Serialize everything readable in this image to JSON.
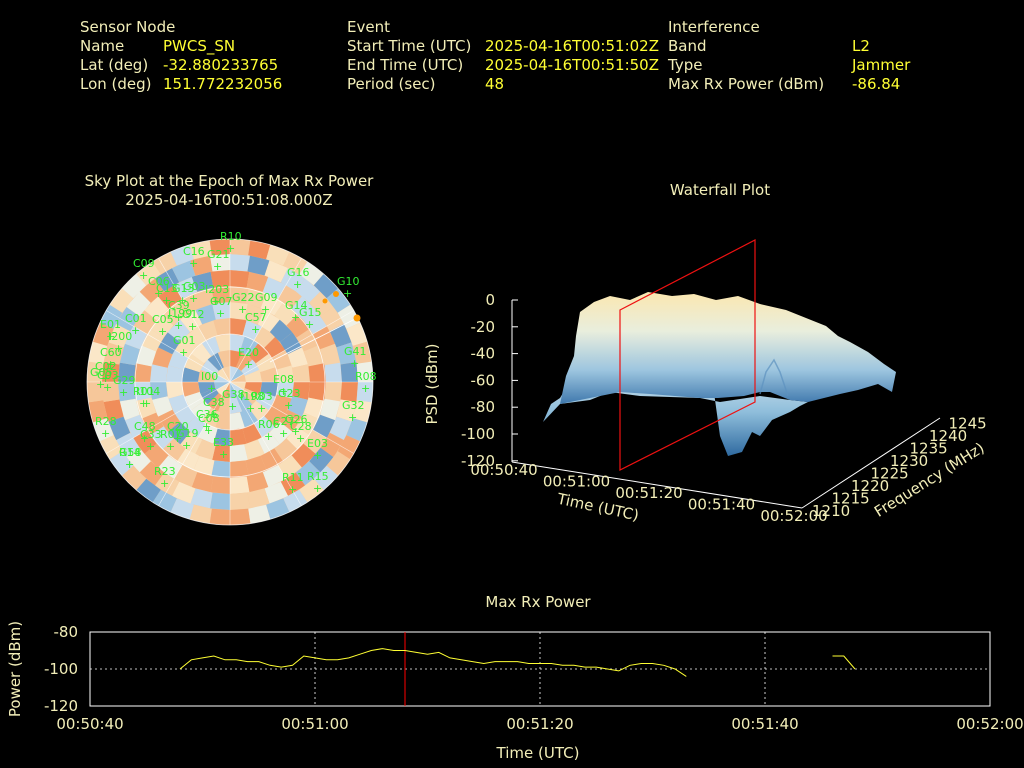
{
  "header": {
    "sensor": {
      "title": "Sensor Node",
      "name_label": "Name",
      "name_value": "PWCS_SN",
      "lat_label": "Lat (deg)",
      "lat_value": "-32.880233765",
      "lon_label": "Lon (deg)",
      "lon_value": "151.772232056"
    },
    "event": {
      "title": "Event",
      "start_label": "Start Time (UTC)",
      "start_value": "2025-04-16T00:51:02Z",
      "end_label": "End Time (UTC)",
      "end_value": "2025-04-16T00:51:50Z",
      "period_label": "Period (sec)",
      "period_value": "48"
    },
    "interference": {
      "title": "Interference",
      "band_label": "Band",
      "band_value": "L2",
      "type_label": "Type",
      "type_value": "Jammer",
      "power_label": "Max Rx Power (dBm)",
      "power_value": "-86.84"
    }
  },
  "colors": {
    "text": "#f2eeb8",
    "value": "#ffff33",
    "sat_label": "#33ee33",
    "marker": "#ff0000",
    "line": "#ffff33"
  },
  "chart_data": [
    {
      "type": "scatter",
      "title": "Sky Plot at the Epoch of Max Rx Power",
      "subtitle": "2025-04-16T00:51:08.000Z",
      "labels": [
        "R10",
        "G21",
        "C16",
        "C09",
        "G16",
        "G10",
        "C06",
        "G03",
        "G09",
        "G14",
        "C13",
        "G13",
        "G15",
        "C39",
        "G07",
        "C05",
        "G01",
        "C57",
        "C03",
        "I200",
        "E01",
        "C60",
        "C02",
        "C01",
        "G12",
        "G41",
        "G29",
        "E20",
        "R08",
        "R01",
        "G38",
        "E08",
        "G23",
        "C38",
        "I198",
        "G32",
        "G26",
        "C20",
        "C08",
        "R06",
        "C28",
        "C27",
        "E03",
        "R28",
        "C48",
        "C33",
        "G19",
        "R23",
        "R11",
        "R07",
        "R15",
        "R14",
        "G58",
        "I199",
        "I104",
        "I203",
        "G22",
        "G05",
        "C36",
        "E33",
        "R03",
        "I00"
      ],
      "note": "polar sky plot of satellite positions, with a reception-power background"
    },
    {
      "type": "area",
      "title": "Waterfall Plot",
      "zlabel": "PSD (dBm)",
      "xlabel": "Time (UTC)",
      "ylabel": "Frequency (MHz)",
      "z_ticks": [
        "0",
        "-20",
        "-40",
        "-60",
        "-80",
        "-100",
        "-120"
      ],
      "time_ticks": [
        "00:50:40",
        "00:51:00",
        "00:51:20",
        "00:51:40",
        "00:52:00"
      ],
      "freq_ticks": [
        "1210",
        "1215",
        "1220",
        "1225",
        "1230",
        "1235",
        "1240",
        "1245"
      ],
      "zlim": [
        -120,
        0
      ],
      "marker_time": "00:51:08"
    },
    {
      "type": "line",
      "title": "Max Rx Power",
      "xlabel": "Time (UTC)",
      "ylabel": "Power (dBm)",
      "ylim": [
        -120,
        -80
      ],
      "y_ticks": [
        "-80",
        "-100",
        "-120"
      ],
      "x_ticks": [
        "00:50:40",
        "00:51:00",
        "00:51:20",
        "00:51:40",
        "00:52:00"
      ],
      "x_range_sec": [
        0,
        80
      ],
      "marker_sec": 28,
      "series": [
        {
          "x": [
            8,
            9,
            10,
            11,
            12,
            13,
            14,
            15,
            16,
            17,
            18,
            19,
            20,
            21,
            22,
            23,
            24,
            25,
            26,
            27,
            28,
            29,
            30,
            31,
            32,
            33,
            34,
            35,
            36,
            37,
            38,
            39,
            40,
            41,
            42,
            43,
            44,
            45,
            46,
            47,
            48,
            49,
            50,
            51,
            52,
            53,
            54,
            55
          ],
          "y": [
            -100,
            -95,
            -94,
            -93,
            -95,
            -95,
            -96,
            -96,
            -98,
            -99,
            -98,
            -93,
            -94,
            -95,
            -95,
            -94,
            -92,
            -90,
            -89,
            -90,
            -90,
            -91,
            -92,
            -91,
            -94,
            -95,
            -96,
            -97,
            -96,
            -96,
            -96,
            -97,
            -97,
            -97,
            -98,
            -98,
            -99,
            -99,
            -100,
            -101,
            -98,
            -97,
            -97,
            -98,
            -100,
            -104,
            null,
            null
          ]
        },
        {
          "x": [
            66,
            67,
            68
          ],
          "y": [
            -93,
            -93,
            -100
          ]
        }
      ]
    }
  ]
}
